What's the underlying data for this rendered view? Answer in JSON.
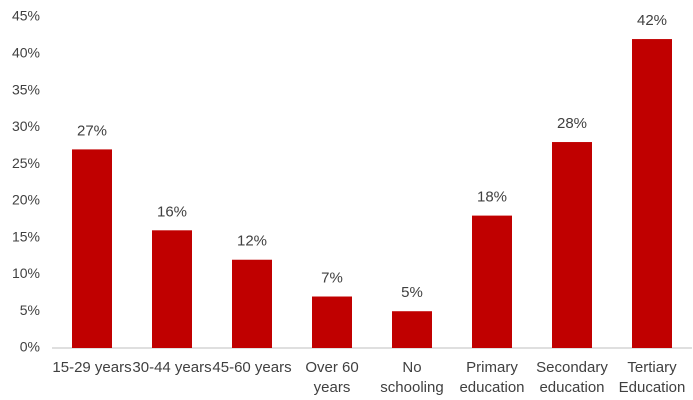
{
  "chart_data": {
    "type": "bar",
    "categories": [
      "15-29 years",
      "30-44 years",
      "45-60 years",
      "Over 60 years",
      "No schooling",
      "Primary education",
      "Secondary education",
      "Tertiary Education"
    ],
    "values": [
      27,
      16,
      12,
      7,
      5,
      18,
      28,
      42
    ],
    "value_labels": [
      "27%",
      "16%",
      "12%",
      "7%",
      "5%",
      "18%",
      "28%",
      "42%"
    ],
    "color": "#c00000",
    "ylim": [
      0,
      45
    ],
    "yticks": [
      {
        "value": 0,
        "label": "0%"
      },
      {
        "value": 5,
        "label": "5%"
      },
      {
        "value": 10,
        "label": "10%"
      },
      {
        "value": 15,
        "label": "15%"
      },
      {
        "value": 20,
        "label": "20%"
      },
      {
        "value": 25,
        "label": "25%"
      },
      {
        "value": 30,
        "label": "30%"
      },
      {
        "value": 35,
        "label": "35%"
      },
      {
        "value": 40,
        "label": "40%"
      },
      {
        "value": 45,
        "label": "45%"
      }
    ],
    "grid": false
  }
}
